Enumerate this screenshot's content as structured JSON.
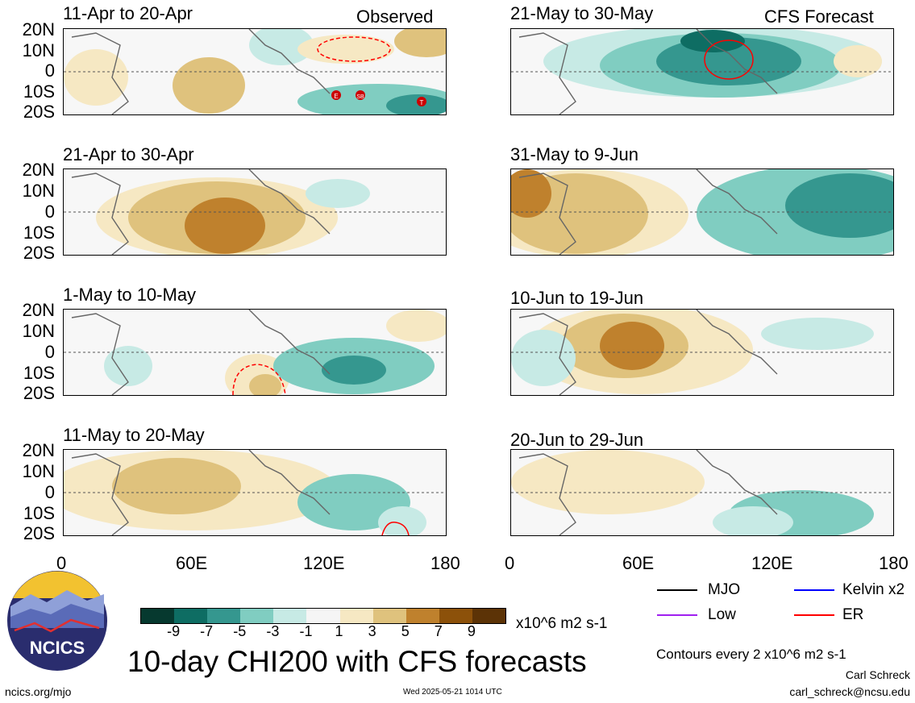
{
  "panels": [
    {
      "title": "11-Apr to 20-Apr",
      "tag": "Observed"
    },
    {
      "title": "21-Apr to 30-Apr",
      "tag": ""
    },
    {
      "title": "1-May to 10-May",
      "tag": ""
    },
    {
      "title": "11-May to 20-May",
      "tag": ""
    },
    {
      "title": "21-May to 30-May",
      "tag": "CFS Forecast"
    },
    {
      "title": "31-May to 9-Jun",
      "tag": ""
    },
    {
      "title": "10-Jun to 19-Jun",
      "tag": ""
    },
    {
      "title": "20-Jun to 29-Jun",
      "tag": ""
    }
  ],
  "lat_labels": [
    "20N",
    "10N",
    "0",
    "10S",
    "20S"
  ],
  "lon_labels": [
    "0",
    "60E",
    "120E",
    "180"
  ],
  "colorbar": {
    "labels": [
      "-9",
      "-7",
      "-5",
      "-3",
      "-1",
      "1",
      "3",
      "5",
      "7",
      "9"
    ],
    "colors": [
      "#06392f",
      "#0e6d63",
      "#35978f",
      "#80cdc1",
      "#c7eae5",
      "#f5f5f5",
      "#f6e8c3",
      "#dfc27d",
      "#bf812d",
      "#8c510a",
      "#5c3306"
    ],
    "units": "x10^6 m2 s-1"
  },
  "legend": {
    "items": [
      {
        "label": "MJO",
        "color": "#000000"
      },
      {
        "label": "Kelvin x2",
        "color": "#0000ff"
      },
      {
        "label": "Low",
        "color": "#a020f0"
      },
      {
        "label": "ER",
        "color": "#ff0000"
      }
    ],
    "contours": "Contours every 2 x10^6 m2 s-1"
  },
  "title": "10-day CHI200 with CFS forecasts",
  "logo_text": "NCICS",
  "footer": {
    "url": "ncics.org/mjo",
    "timestamp": "Wed 2025-05-21 1014 UTC",
    "author": "Carl Schreck",
    "email": "carl_schreck@ncsu.edu"
  },
  "storm_markers": [
    "E",
    "SB",
    "T"
  ]
}
